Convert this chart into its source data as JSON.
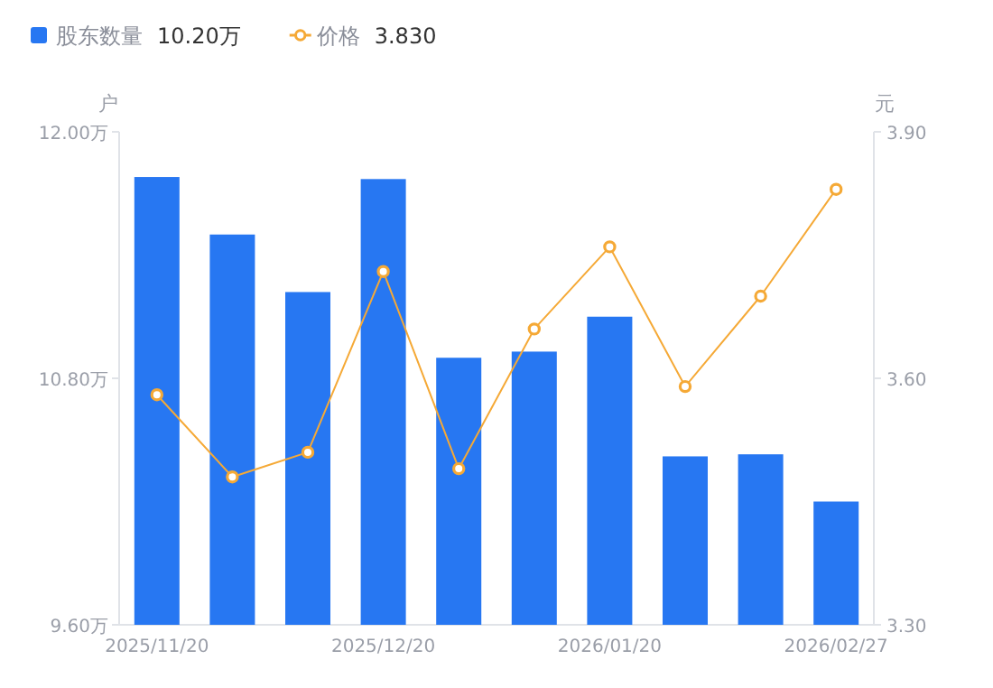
{
  "chart_data": {
    "type": "bar",
    "categories": [
      "2025/11/20",
      null,
      null,
      "2025/12/20",
      null,
      null,
      "2026/01/20",
      null,
      null,
      "2026/02/27"
    ],
    "series": [
      {
        "name": "股东数量",
        "color": "#2777f2",
        "values": [
          11.78,
          11.5,
          11.22,
          11.77,
          10.9,
          10.93,
          11.1,
          10.42,
          10.43,
          10.2
        ]
      },
      {
        "name": "价格",
        "type": "line",
        "axis": "y2",
        "color": "#f5a936",
        "marker": "circle",
        "values": [
          3.58,
          3.48,
          3.51,
          3.73,
          3.49,
          3.66,
          3.76,
          3.59,
          3.7,
          3.83
        ]
      }
    ],
    "ylabel": "户",
    "y2label": "元",
    "ylim": [
      9.6,
      12.0
    ],
    "yticks": [
      {
        "value": 9.6,
        "label": "9.60万"
      },
      {
        "value": 10.8,
        "label": "10.80万"
      },
      {
        "value": 12.0,
        "label": "12.00万"
      }
    ],
    "y2lim": [
      3.3,
      3.9
    ],
    "y2ticks": [
      {
        "value": 3.3,
        "label": "3.30"
      },
      {
        "value": 3.6,
        "label": "3.60"
      },
      {
        "value": 3.9,
        "label": "3.90"
      }
    ],
    "legend": "top left",
    "annotations": [
      "10.20万",
      "3.830"
    ]
  }
}
